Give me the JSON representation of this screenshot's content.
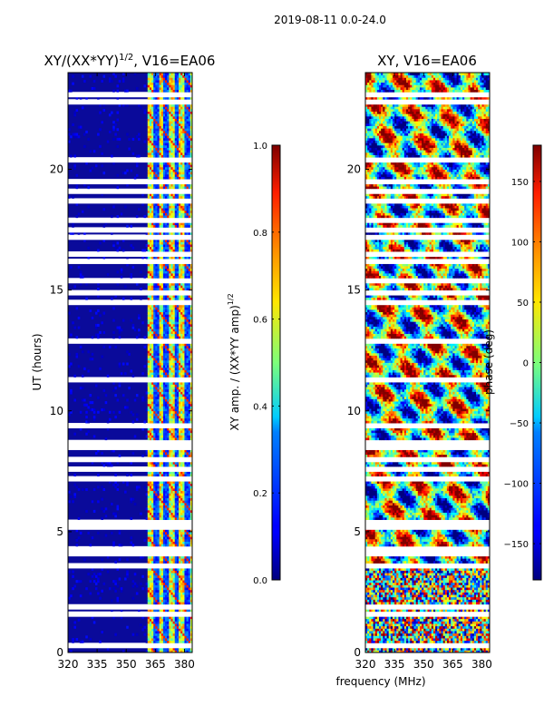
{
  "figure": {
    "suptitle": "2019-08-11 0.0-24.0",
    "xlabel": "frequency (MHz)"
  },
  "chart_data": [
    {
      "type": "heatmap",
      "title": "XY/(XX*YY)",
      "title_superscript": "1/2",
      "title_suffix": ", V16=EA06",
      "ylabel": "UT (hours)",
      "xlabel": "frequency (MHz)",
      "xlim": [
        320,
        384
      ],
      "ylim": [
        0,
        24
      ],
      "xticks": [
        "320",
        "335",
        "350",
        "365",
        "380"
      ],
      "yticks": [
        "0",
        "5",
        "10",
        "15",
        "20"
      ],
      "xtick_values": [
        320,
        335,
        350,
        365,
        380
      ],
      "ytick_values": [
        0,
        5,
        10,
        15,
        20
      ],
      "colormap": "jet",
      "colorbar": {
        "label": "XY amp. / (XX*YY amp)",
        "label_superscript": "1/2",
        "range": [
          0.0,
          1.0
        ],
        "ticks": [
          "0.0",
          "0.2",
          "0.4",
          "0.6",
          "0.8",
          "1.0"
        ],
        "tick_values": [
          0.0,
          0.2,
          0.4,
          0.6,
          0.8,
          1.0
        ]
      },
      "description": "Low normalized amplitude (~0.1) below 361 MHz; elevated amplitude (0.3-0.7) in striped channels between 361 and 384 MHz"
    },
    {
      "type": "heatmap",
      "title": "XY, V16=EA06",
      "xlabel": "frequency (MHz)",
      "xlim": [
        320,
        384
      ],
      "ylim": [
        0,
        24
      ],
      "xticks": [
        "320",
        "335",
        "350",
        "365",
        "380"
      ],
      "yticks": [
        "0",
        "5",
        "10",
        "15",
        "20"
      ],
      "xtick_values": [
        320,
        335,
        350,
        365,
        380
      ],
      "ytick_values": [
        0,
        5,
        10,
        15,
        20
      ],
      "colormap": "jet",
      "colorbar": {
        "label": "phase (deg)",
        "range": [
          -180,
          180
        ],
        "ticks": [
          "−150",
          "−100",
          "−50",
          "0",
          "50",
          "100",
          "150"
        ],
        "tick_values": [
          -150,
          -100,
          -50,
          0,
          50,
          100,
          150
        ]
      },
      "description": "Phase spanning the full -180 to 180 degree range with noisy structure"
    }
  ],
  "flagged_time_gaps_hours": [
    0.3,
    1.6,
    1.9,
    3.6,
    4.1,
    4.3,
    5.2,
    5.4,
    7.2,
    7.6,
    8.0,
    8.5,
    8.7,
    9.4,
    11.3,
    12.9,
    14.5,
    14.9,
    15.4,
    16.2,
    16.5,
    17.2,
    17.5,
    17.9,
    18.7,
    19.1,
    19.5,
    20.4,
    22.8,
    23.1
  ]
}
